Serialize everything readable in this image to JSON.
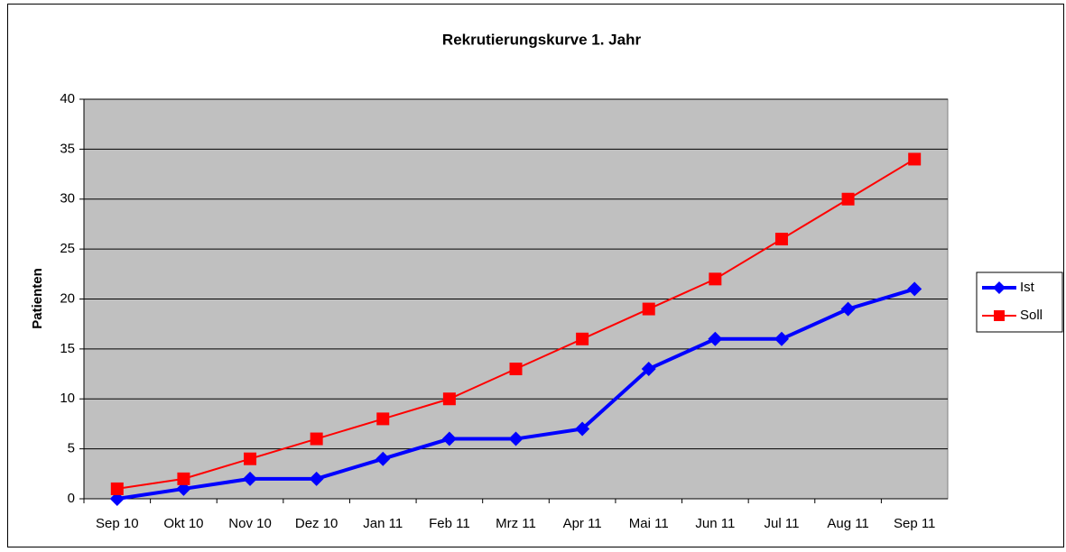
{
  "chart_data": {
    "type": "line",
    "title": "Rekrutierungskurve 1. Jahr",
    "y_label": "Patienten",
    "categories": [
      "Sep 10",
      "Okt 10",
      "Nov 10",
      "Dez 10",
      "Jan 11",
      "Feb 11",
      "Mrz 11",
      "Apr 11",
      "Mai 11",
      "Jun 11",
      "Jul 11",
      "Aug 11",
      "Sep 11"
    ],
    "series": [
      {
        "name": "Ist",
        "color": "#0000ff",
        "marker": "diamond",
        "values": [
          0,
          1,
          2,
          2,
          4,
          6,
          6,
          7,
          13,
          16,
          16,
          19,
          21
        ]
      },
      {
        "name": "Soll",
        "color": "#ff0000",
        "marker": "square",
        "values": [
          1,
          2,
          4,
          6,
          8,
          10,
          13,
          16,
          19,
          22,
          26,
          30,
          34
        ]
      }
    ],
    "ylim": [
      0,
      40
    ],
    "yticks": [
      0,
      5,
      10,
      15,
      20,
      25,
      30,
      35,
      40
    ],
    "grid": true,
    "legend": "right"
  }
}
